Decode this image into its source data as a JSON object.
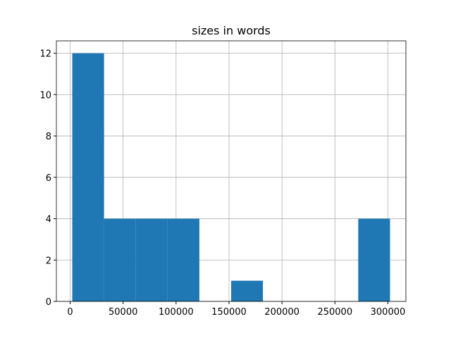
{
  "chart_data": {
    "type": "histogram",
    "title": "sizes in words",
    "bins": [
      2000,
      32000,
      62000,
      92000,
      122000,
      152000,
      182000,
      212000,
      242000,
      272000,
      302000
    ],
    "values": [
      12,
      4,
      4,
      4,
      0,
      1,
      0,
      0,
      0,
      4
    ],
    "color": "#1f77b4",
    "xlim": [
      -13000,
      317000
    ],
    "xticks": [
      0,
      50000,
      100000,
      150000,
      200000,
      250000,
      300000
    ],
    "ylim": [
      0,
      12.6
    ],
    "yticks": [
      0,
      2,
      4,
      6,
      8,
      10,
      12
    ],
    "grid": true
  }
}
